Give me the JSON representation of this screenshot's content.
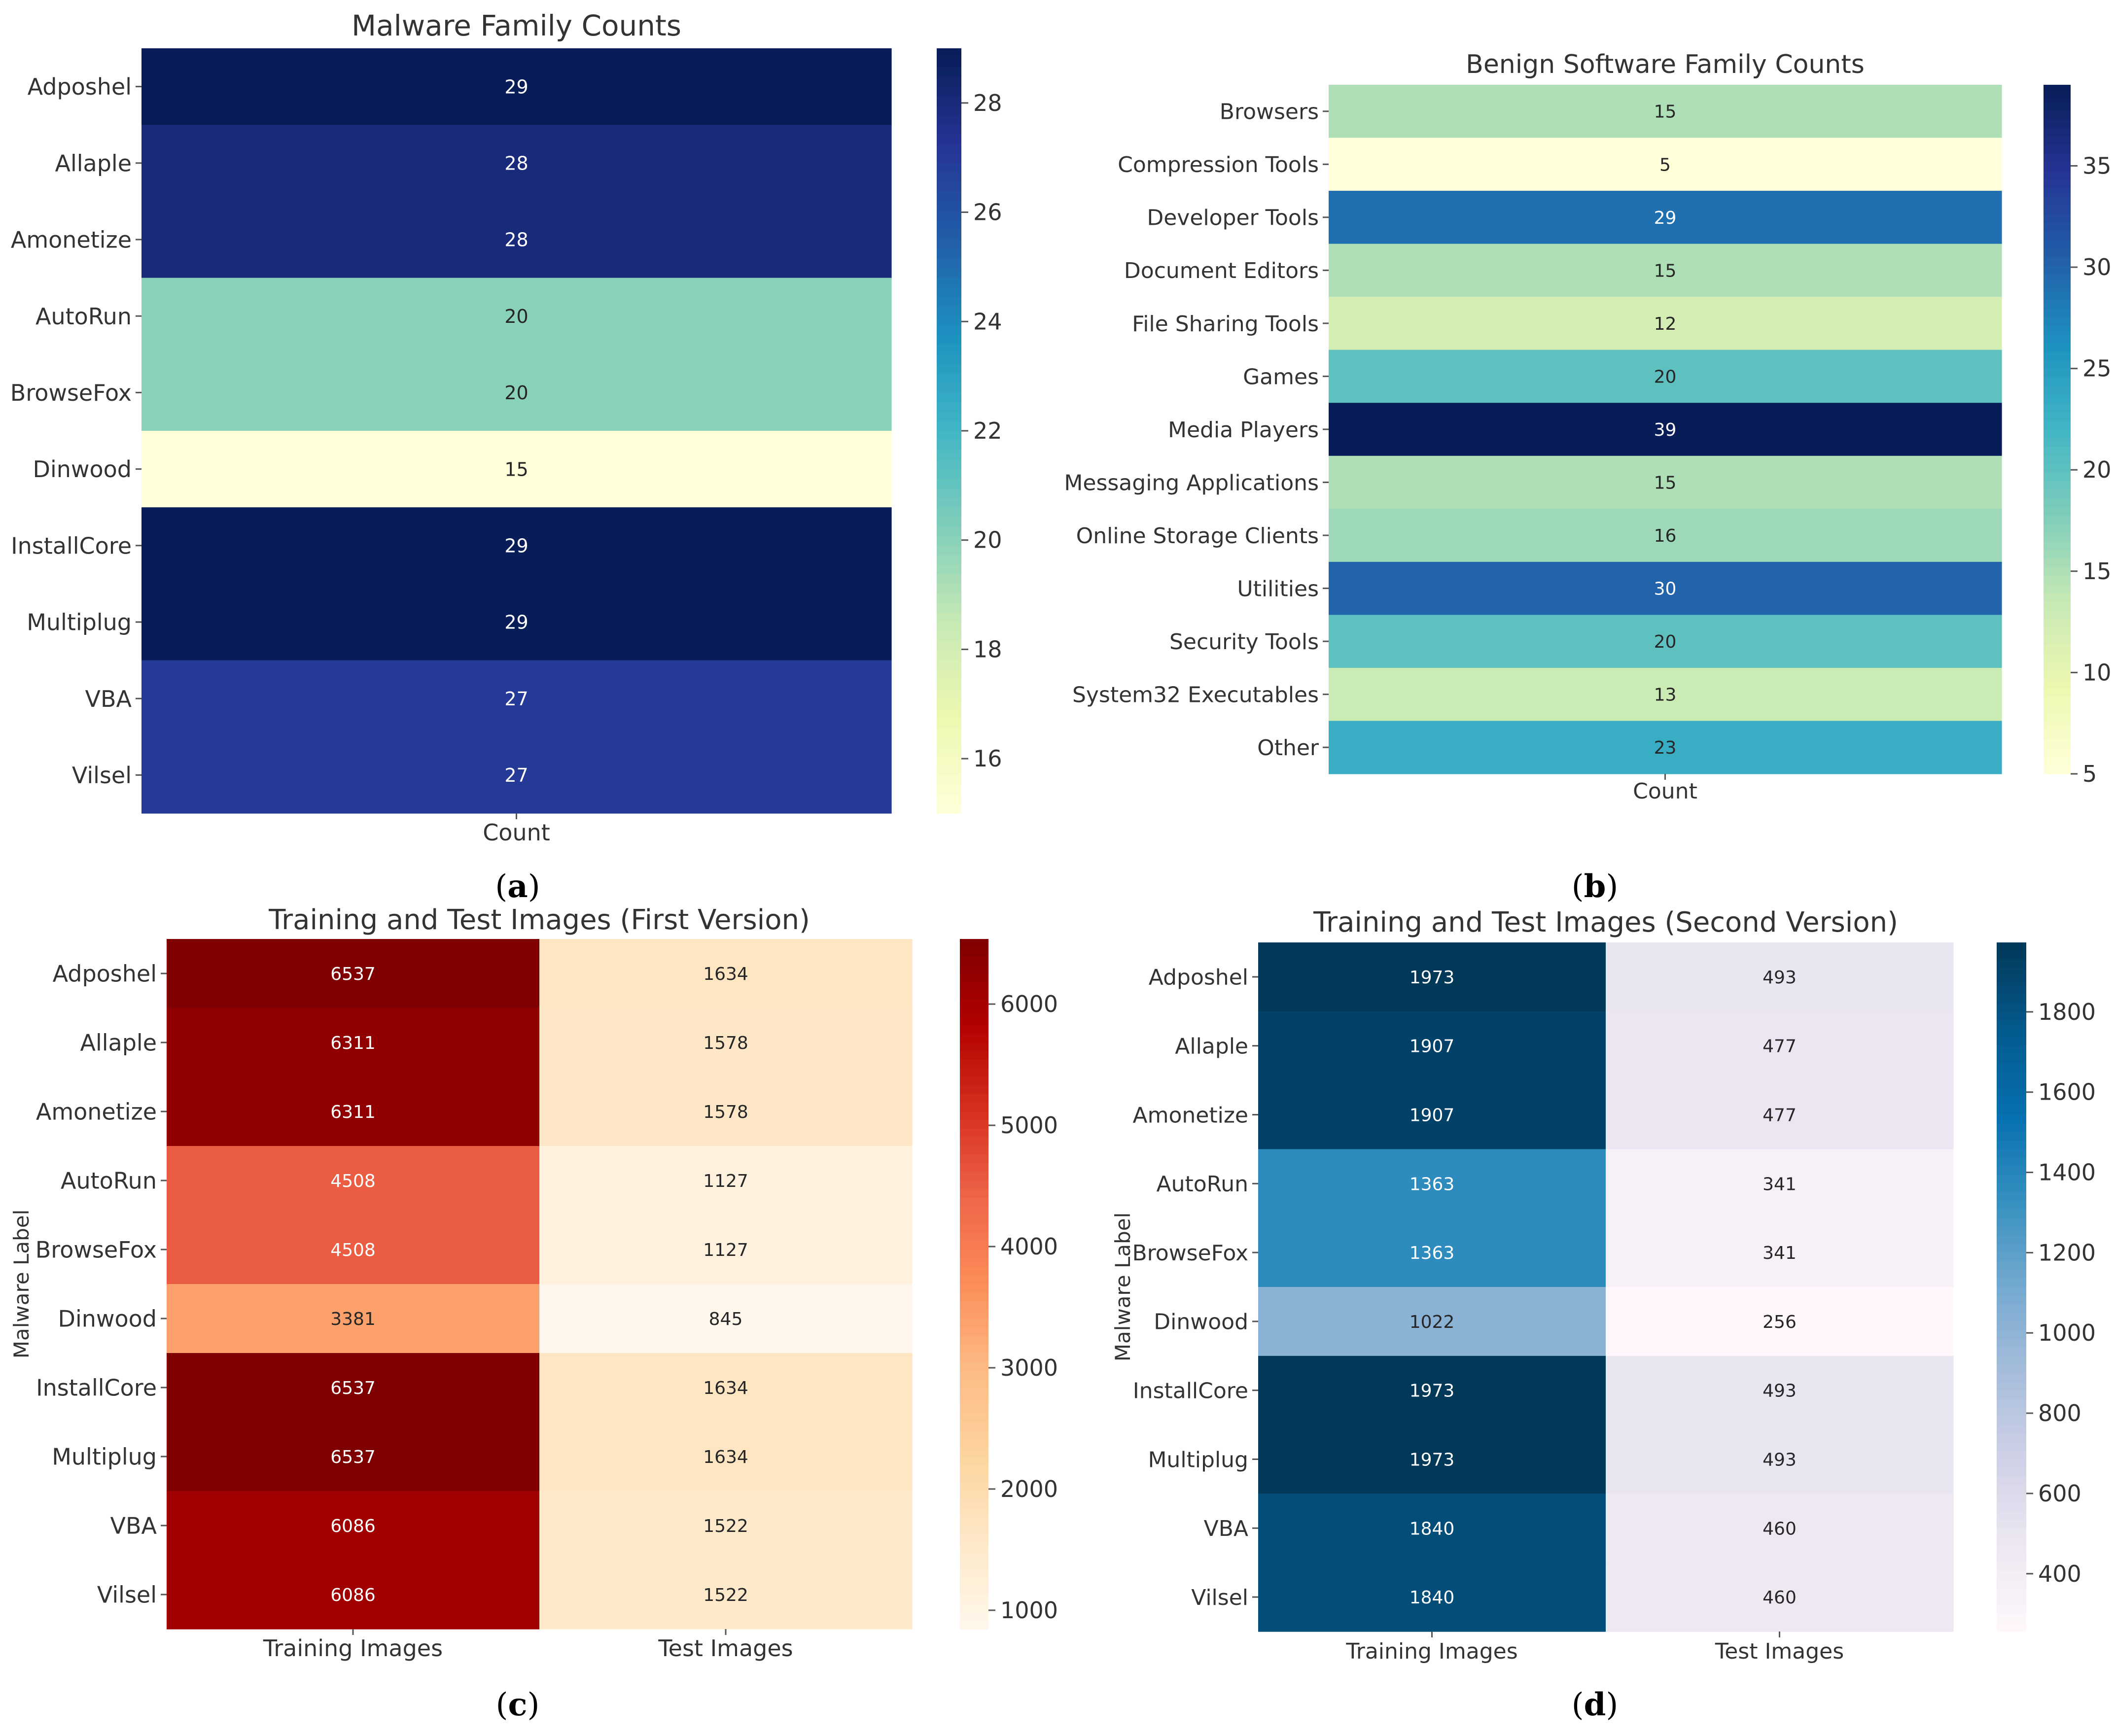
{
  "chart_data": [
    {
      "id": "a",
      "type": "heatmap",
      "title": "Malware Family Counts",
      "caption_letter": "a",
      "xlabel": "",
      "ylabel": "",
      "columns": [
        "Count"
      ],
      "rows": [
        "Adposhel",
        "Allaple",
        "Amonetize",
        "AutoRun",
        "BrowseFox",
        "Dinwood",
        "InstallCore",
        "Multiplug",
        "VBA",
        "Vilsel"
      ],
      "values": [
        [
          29
        ],
        [
          28
        ],
        [
          28
        ],
        [
          20
        ],
        [
          20
        ],
        [
          15
        ],
        [
          29
        ],
        [
          29
        ],
        [
          27
        ],
        [
          27
        ]
      ],
      "colormap": "YlGnBu",
      "vmin": 15,
      "vmax": 29,
      "colorbar_ticks": [
        16,
        18,
        20,
        22,
        24,
        26,
        28
      ]
    },
    {
      "id": "b",
      "type": "heatmap",
      "title": "Benign Software Family Counts",
      "caption_letter": "b",
      "xlabel": "",
      "ylabel": "",
      "columns": [
        "Count"
      ],
      "rows": [
        "Browsers",
        "Compression Tools",
        "Developer Tools",
        "Document Editors",
        "File Sharing Tools",
        "Games",
        "Media Players",
        "Messaging Applications",
        "Online Storage Clients",
        "Utilities",
        "Security Tools",
        "System32 Executables",
        "Other"
      ],
      "values": [
        [
          15
        ],
        [
          5
        ],
        [
          29
        ],
        [
          15
        ],
        [
          12
        ],
        [
          20
        ],
        [
          39
        ],
        [
          15
        ],
        [
          16
        ],
        [
          30
        ],
        [
          20
        ],
        [
          13
        ],
        [
          23
        ]
      ],
      "colormap": "YlGnBu",
      "vmin": 5,
      "vmax": 39,
      "colorbar_ticks": [
        5,
        10,
        15,
        20,
        25,
        30,
        35
      ]
    },
    {
      "id": "c",
      "type": "heatmap",
      "title": "Training and Test Images (First Version)",
      "caption_letter": "c",
      "xlabel": "",
      "ylabel": "Malware Label",
      "columns": [
        "Training Images",
        "Test Images"
      ],
      "rows": [
        "Adposhel",
        "Allaple",
        "Amonetize",
        "AutoRun",
        "BrowseFox",
        "Dinwood",
        "InstallCore",
        "Multiplug",
        "VBA",
        "Vilsel"
      ],
      "values": [
        [
          6537,
          1634
        ],
        [
          6311,
          1578
        ],
        [
          6311,
          1578
        ],
        [
          4508,
          1127
        ],
        [
          4508,
          1127
        ],
        [
          3381,
          845
        ],
        [
          6537,
          1634
        ],
        [
          6537,
          1634
        ],
        [
          6086,
          1522
        ],
        [
          6086,
          1522
        ]
      ],
      "colormap": "OrRd",
      "vmin": 845,
      "vmax": 6537,
      "colorbar_ticks": [
        1000,
        2000,
        3000,
        4000,
        5000,
        6000
      ]
    },
    {
      "id": "d",
      "type": "heatmap",
      "title": "Training and Test Images (Second Version)",
      "caption_letter": "d",
      "xlabel": "",
      "ylabel": "Malware Label",
      "columns": [
        "Training Images",
        "Test Images"
      ],
      "rows": [
        "Adposhel",
        "Allaple",
        "Amonetize",
        "AutoRun",
        "BrowseFox",
        "Dinwood",
        "InstallCore",
        "Multiplug",
        "VBA",
        "Vilsel"
      ],
      "values": [
        [
          1973,
          493
        ],
        [
          1907,
          477
        ],
        [
          1907,
          477
        ],
        [
          1363,
          341
        ],
        [
          1363,
          341
        ],
        [
          1022,
          256
        ],
        [
          1973,
          493
        ],
        [
          1973,
          493
        ],
        [
          1840,
          460
        ],
        [
          1840,
          460
        ]
      ],
      "colormap": "PuBu",
      "vmin": 256,
      "vmax": 1973,
      "colorbar_ticks": [
        400,
        600,
        800,
        1000,
        1200,
        1400,
        1600,
        1800
      ]
    }
  ]
}
